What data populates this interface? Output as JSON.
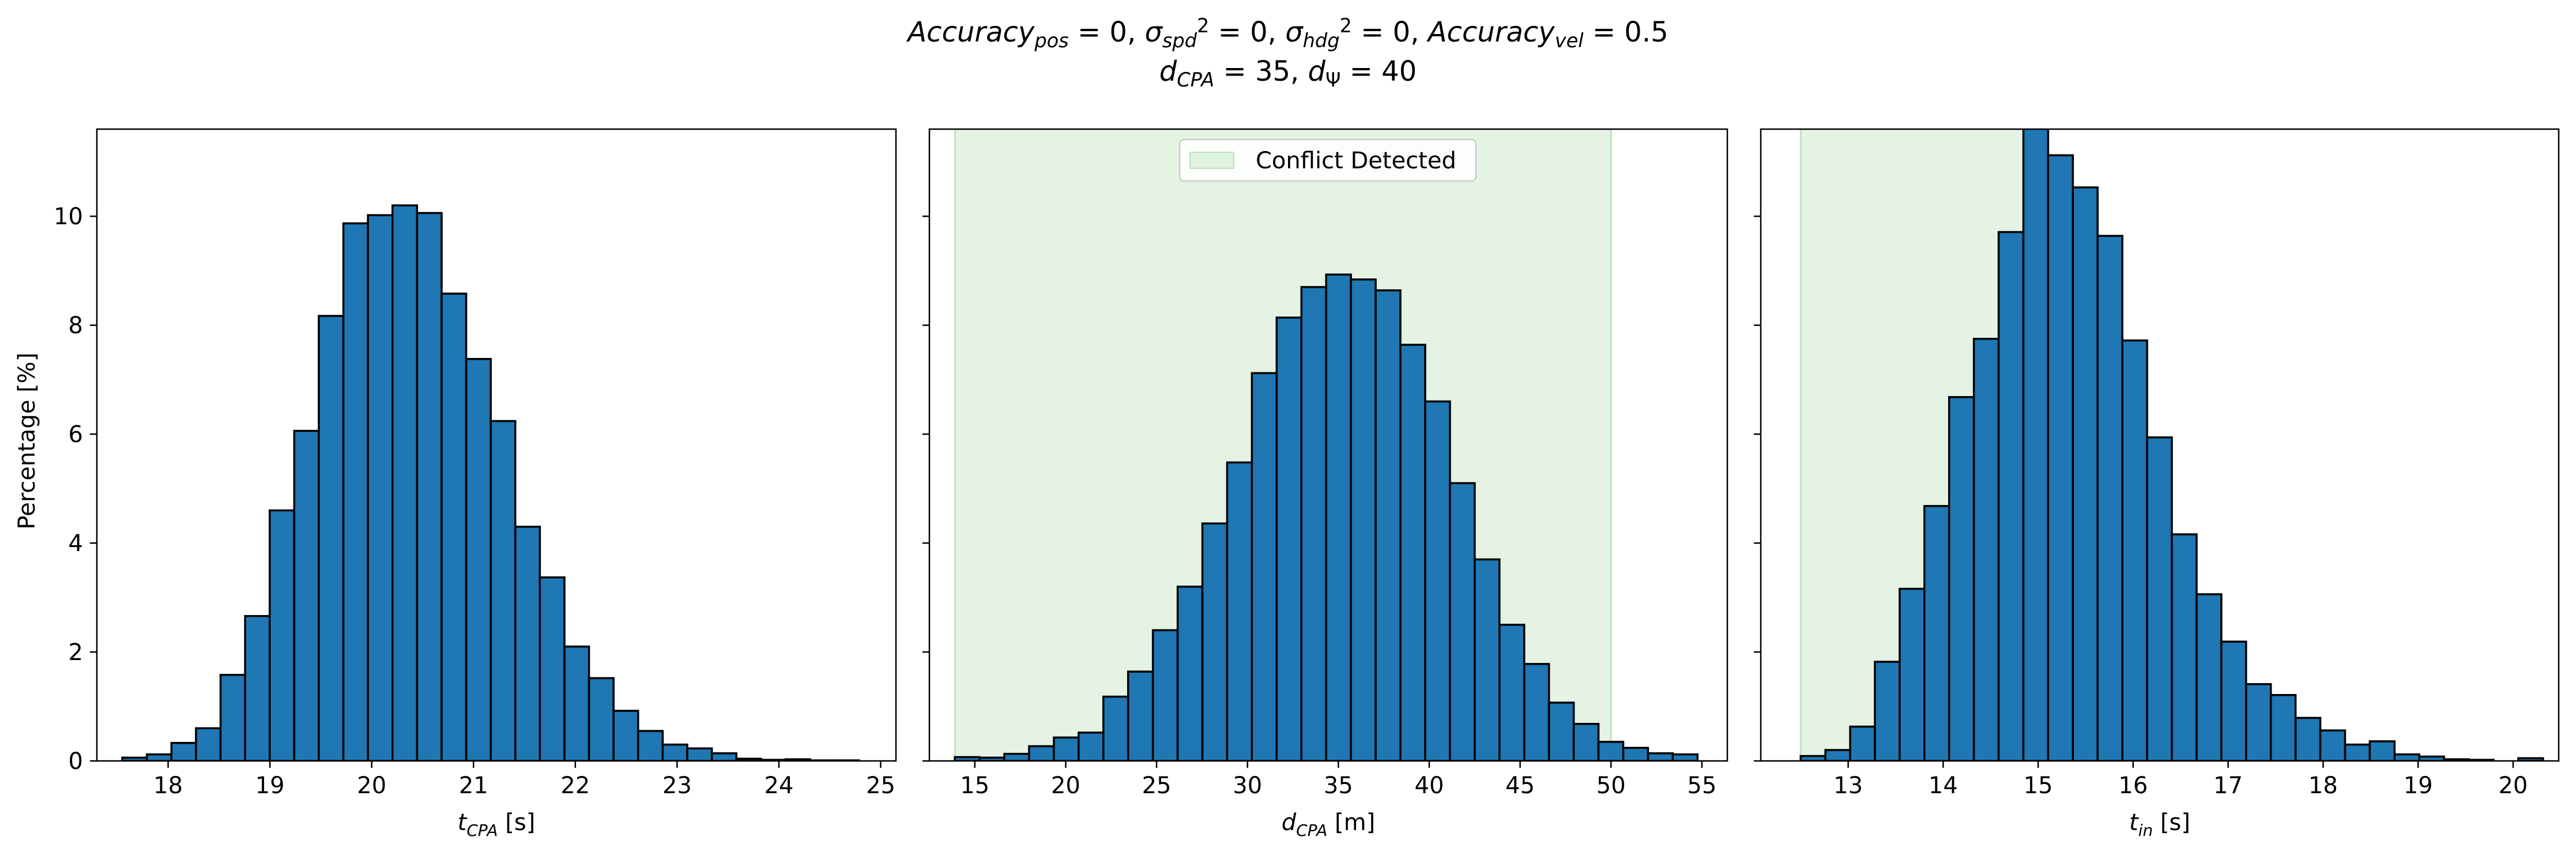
{
  "figure": {
    "title_line1": [
      {
        "t": "Accuracy",
        "s": "it"
      },
      {
        "t": "pos",
        "s": "it sub"
      },
      {
        "t": " = 0, ",
        "s": ""
      },
      {
        "t": "σ",
        "s": "it"
      },
      {
        "t": "spd",
        "s": "it sub"
      },
      {
        "t": "2",
        "s": "sup"
      },
      {
        "t": " = 0, ",
        "s": ""
      },
      {
        "t": "σ",
        "s": "it"
      },
      {
        "t": "hdg",
        "s": "it sub"
      },
      {
        "t": "2",
        "s": "sup"
      },
      {
        "t": " = 0, ",
        "s": ""
      },
      {
        "t": "Accuracy",
        "s": "it"
      },
      {
        "t": "vel",
        "s": "it sub"
      },
      {
        "t": " = 0.5",
        "s": ""
      }
    ],
    "title_line2": [
      {
        "t": "d",
        "s": "it"
      },
      {
        "t": "CPA",
        "s": "it sub"
      },
      {
        "t": " = 35, ",
        "s": ""
      },
      {
        "t": "d",
        "s": "it"
      },
      {
        "t": "Ψ",
        "s": "sub"
      },
      {
        "t": " = 40",
        "s": ""
      }
    ],
    "ylabel": "Percentage [%]",
    "colors": {
      "bar": "#1f77b4",
      "edge": "#000000",
      "conflict": "#2ca02c"
    }
  },
  "chart_data": [
    {
      "type": "bar",
      "xlabel": [
        {
          "t": "t",
          "s": "it"
        },
        {
          "t": "CPA",
          "s": "it sub"
        },
        {
          "t": " [s]",
          "s": ""
        }
      ],
      "xlim": [
        17.3,
        25.15
      ],
      "ylim": [
        0,
        11.6
      ],
      "xticks": [
        "18",
        "19",
        "20",
        "21",
        "22",
        "23",
        "24",
        "25"
      ],
      "yticks": [
        "0",
        "2",
        "4",
        "6",
        "8",
        "10"
      ],
      "bin_start": 17.55,
      "bin_width": 0.2413,
      "values": [
        0.06,
        0.12,
        0.33,
        0.6,
        1.58,
        2.66,
        4.6,
        6.06,
        8.17,
        9.87,
        10.02,
        10.2,
        10.06,
        8.58,
        7.38,
        6.24,
        4.3,
        3.37,
        2.1,
        1.52,
        0.92,
        0.55,
        0.3,
        0.23,
        0.14,
        0.04,
        0.02,
        0.03,
        0.01,
        0.01
      ],
      "conflict_region": null,
      "legend": null
    },
    {
      "type": "bar",
      "xlabel": [
        {
          "t": "d",
          "s": "it"
        },
        {
          "t": "CPA",
          "s": "it sub"
        },
        {
          "t": " [m]",
          "s": ""
        }
      ],
      "xlim": [
        12.5,
        56.4
      ],
      "ylim": [
        0,
        11.6
      ],
      "xticks": [
        "15",
        "20",
        "25",
        "30",
        "35",
        "40",
        "45",
        "50",
        "55"
      ],
      "yticks": [],
      "bin_start": 13.9,
      "bin_width": 1.362,
      "values": [
        0.07,
        0.06,
        0.13,
        0.27,
        0.43,
        0.52,
        1.18,
        1.64,
        2.4,
        3.2,
        4.36,
        5.48,
        7.12,
        8.14,
        8.7,
        8.93,
        8.84,
        8.64,
        7.64,
        6.6,
        5.1,
        3.7,
        2.5,
        1.78,
        1.07,
        0.68,
        0.35,
        0.24,
        0.14,
        0.12
      ],
      "conflict_region": [
        13.9,
        50.0
      ],
      "legend": "Conflict Detected"
    },
    {
      "type": "bar",
      "xlabel": [
        {
          "t": "t",
          "s": "it"
        },
        {
          "t": "in",
          "s": "it sub"
        },
        {
          "t": " [s]",
          "s": ""
        }
      ],
      "xlim": [
        12.08,
        20.48
      ],
      "ylim": [
        0,
        11.6
      ],
      "xticks": [
        "13",
        "14",
        "15",
        "16",
        "17",
        "18",
        "19",
        "20"
      ],
      "yticks": [],
      "bin_start": 12.5,
      "bin_width": 0.2605,
      "values": [
        0.09,
        0.2,
        0.63,
        1.82,
        3.16,
        4.68,
        6.68,
        7.75,
        9.71,
        11.7,
        11.12,
        10.53,
        9.64,
        7.72,
        5.94,
        4.16,
        3.06,
        2.19,
        1.41,
        1.21,
        0.79,
        0.56,
        0.3,
        0.36,
        0.12,
        0.08,
        0.03,
        0.02,
        0.0,
        0.05
      ],
      "conflict_region": [
        12.5,
        15.0
      ],
      "legend": null
    }
  ]
}
